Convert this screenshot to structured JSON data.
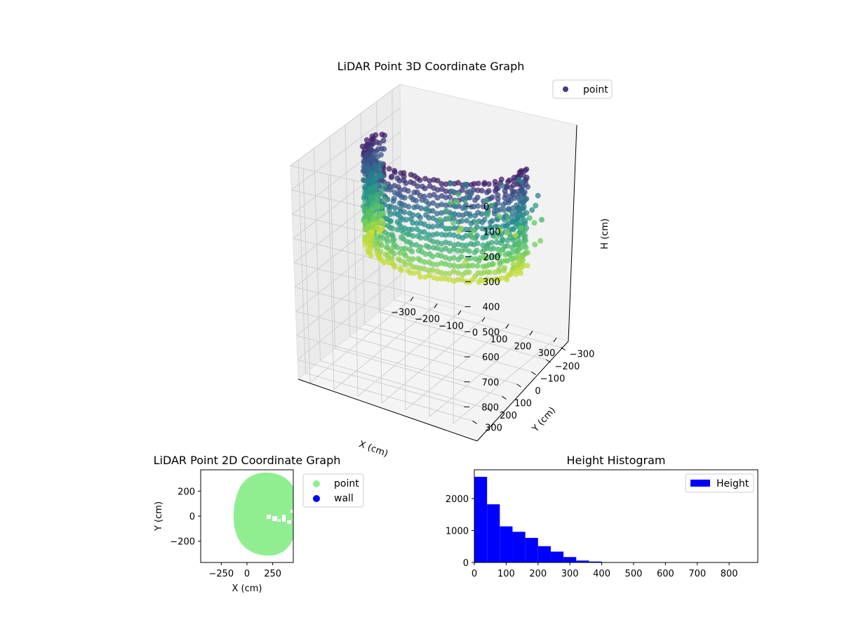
{
  "chart_data": [
    {
      "type": "scatter3d",
      "title": "LiDAR Point 3D Coordinate Graph",
      "xlabel": "X (cm)",
      "ylabel": "Y (cm)",
      "zlabel": "H (cm)",
      "xticks": [
        "−300",
        "−200",
        "−100",
        "0",
        "100",
        "200",
        "300"
      ],
      "yticks": [
        "−300",
        "−200",
        "−100",
        "0",
        "100",
        "200",
        "300"
      ],
      "zticks": [
        "0",
        "100",
        "200",
        "300",
        "400",
        "500",
        "600",
        "700",
        "800"
      ],
      "xlim": [
        -350,
        350
      ],
      "ylim": [
        -350,
        350
      ],
      "zlim": [
        0,
        880
      ],
      "z_inverted": true,
      "colormap": "viridis",
      "legend": [
        {
          "name": "point",
          "color": "#443a83"
        }
      ],
      "legend_position": "top-right",
      "grid": true,
      "shape": "curved wall / dome band of points, height roughly 0–450 cm"
    },
    {
      "type": "scatter",
      "title": "LiDAR Point 2D Coordinate Graph",
      "xlabel": "X (cm)",
      "ylabel": "Y (cm)",
      "xticks": [
        "−250",
        "0",
        "250"
      ],
      "yticks": [
        "−200",
        "0",
        "200"
      ],
      "xlim": [
        -450,
        450
      ],
      "ylim": [
        -370,
        370
      ],
      "series": [
        {
          "name": "point",
          "color": "#90ee90"
        },
        {
          "name": "wall",
          "color": "#0000ff"
        }
      ],
      "legend_position": "outside-right"
    },
    {
      "type": "bar",
      "title": "Height Histogram",
      "xticks": [
        "0",
        "100",
        "200",
        "300",
        "400",
        "500",
        "600",
        "700",
        "800"
      ],
      "yticks": [
        "0",
        "1000",
        "2000"
      ],
      "xlim": [
        0,
        890
      ],
      "ylim": [
        0,
        2900
      ],
      "bin_width": 40,
      "bin_edges_start": 0,
      "values": [
        2680,
        1820,
        1130,
        960,
        770,
        510,
        340,
        170,
        60,
        30,
        10,
        5,
        3,
        2,
        1,
        1,
        1,
        1,
        1,
        1,
        1,
        1
      ],
      "series": [
        {
          "name": "Height",
          "color": "#0000ff"
        }
      ],
      "legend_position": "top-right"
    }
  ]
}
